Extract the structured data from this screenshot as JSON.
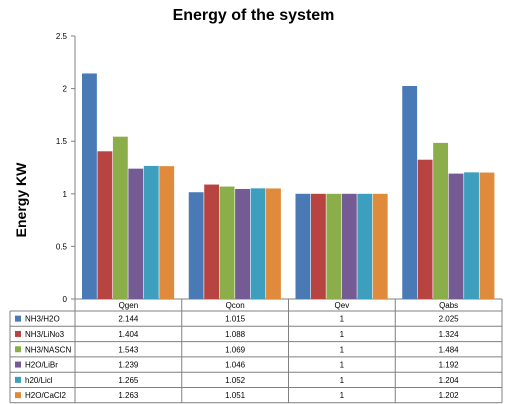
{
  "chart_data": {
    "type": "bar",
    "title": "Energy of the system",
    "xlabel": "",
    "ylabel": "Energy KW",
    "ylim": [
      0,
      2.5
    ],
    "yticks": [
      "0",
      "0.5",
      "1",
      "1.5",
      "2",
      "2.5"
    ],
    "grid": false,
    "legend": "data-table",
    "categories": [
      "Qgen",
      "Qcon",
      "Qev",
      "Qabs"
    ],
    "series": [
      {
        "name": "NH3/H2O",
        "color": "#4a7ab5",
        "values": [
          2.144,
          1.015,
          1,
          2.025
        ]
      },
      {
        "name": "NH3/LiNo3",
        "color": "#b84442",
        "values": [
          1.404,
          1.088,
          1,
          1.324
        ]
      },
      {
        "name": "NH3/NASCN",
        "color": "#8cae4a",
        "values": [
          1.543,
          1.069,
          1,
          1.484
        ]
      },
      {
        "name": "H2O/LiBr",
        "color": "#745b93",
        "values": [
          1.239,
          1.046,
          1,
          1.192
        ]
      },
      {
        "name": "h20/Licl",
        "color": "#3d9fbd",
        "values": [
          1.265,
          1.052,
          1,
          1.204
        ]
      },
      {
        "name": "H2O/CaCl2",
        "color": "#e08a3c",
        "values": [
          1.263,
          1.051,
          1,
          1.202
        ]
      }
    ],
    "table": {
      "header": [
        "Qgen",
        "Qcon",
        "Qev",
        "Qabs"
      ],
      "rows": [
        [
          "2.144",
          "1.015",
          "1",
          "2.025"
        ],
        [
          "1.404",
          "1.088",
          "1",
          "1.324"
        ],
        [
          "1.543",
          "1.069",
          "1",
          "1.484"
        ],
        [
          "1.239",
          "1.046",
          "1",
          "1.192"
        ],
        [
          "1.265",
          "1.052",
          "1",
          "1.204"
        ],
        [
          "1.263",
          "1.051",
          "1",
          "1.202"
        ]
      ]
    }
  }
}
